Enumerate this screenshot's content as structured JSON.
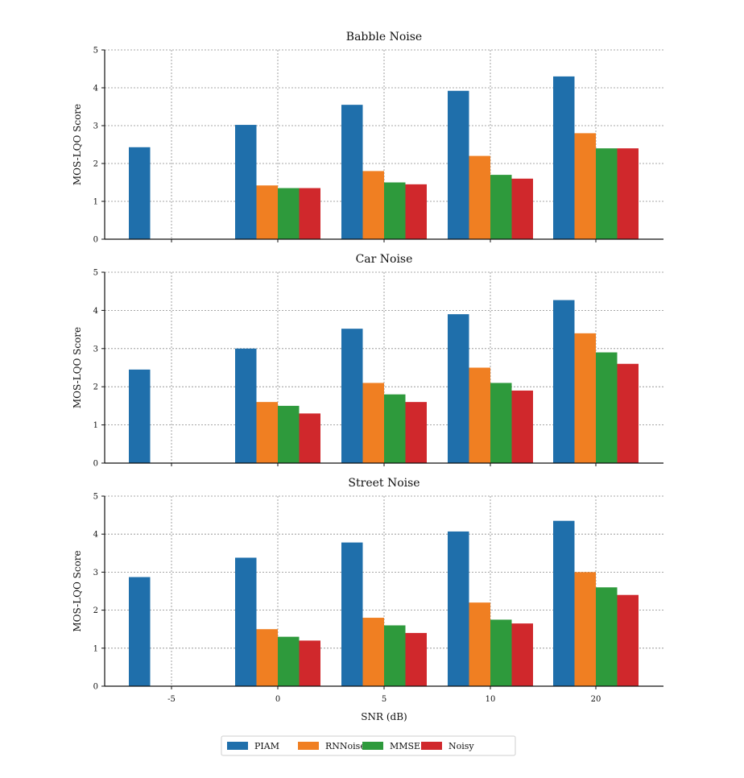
{
  "chart_data": [
    {
      "type": "bar",
      "title": "Babble Noise",
      "ylabel": "MOS-LQO Score",
      "xlabel": "",
      "ylim": [
        0,
        5
      ],
      "yticks": [
        0,
        1,
        2,
        3,
        4,
        5
      ],
      "categories": [
        "-5",
        "0",
        "5",
        "10",
        "20"
      ],
      "grid": true,
      "series": [
        {
          "name": "PIAM",
          "color": "#1f6fab",
          "values": [
            2.43,
            3.02,
            3.55,
            3.92,
            4.3
          ]
        },
        {
          "name": "RNNoise",
          "color": "#f07f22",
          "values": [
            null,
            1.42,
            1.8,
            2.2,
            2.8
          ]
        },
        {
          "name": "MMSE",
          "color": "#2e9a3c",
          "values": [
            null,
            1.35,
            1.5,
            1.7,
            2.4
          ]
        },
        {
          "name": "Noisy",
          "color": "#d0282c",
          "values": [
            null,
            1.35,
            1.45,
            1.6,
            2.4
          ]
        }
      ]
    },
    {
      "type": "bar",
      "title": "Car Noise",
      "ylabel": "MOS-LQO Score",
      "xlabel": "",
      "ylim": [
        0,
        5
      ],
      "yticks": [
        0,
        1,
        2,
        3,
        4,
        5
      ],
      "categories": [
        "-5",
        "0",
        "5",
        "10",
        "20"
      ],
      "grid": true,
      "series": [
        {
          "name": "PIAM",
          "color": "#1f6fab",
          "values": [
            2.45,
            3.0,
            3.52,
            3.9,
            4.27
          ]
        },
        {
          "name": "RNNoise",
          "color": "#f07f22",
          "values": [
            null,
            1.6,
            2.1,
            2.5,
            3.4
          ]
        },
        {
          "name": "MMSE",
          "color": "#2e9a3c",
          "values": [
            null,
            1.5,
            1.8,
            2.1,
            2.9
          ]
        },
        {
          "name": "Noisy",
          "color": "#d0282c",
          "values": [
            null,
            1.3,
            1.6,
            1.9,
            2.6
          ]
        }
      ]
    },
    {
      "type": "bar",
      "title": "Street Noise",
      "ylabel": "MOS-LQO Score",
      "xlabel": "SNR (dB)",
      "ylim": [
        0,
        5
      ],
      "yticks": [
        0,
        1,
        2,
        3,
        4,
        5
      ],
      "categories": [
        "-5",
        "0",
        "5",
        "10",
        "20"
      ],
      "grid": true,
      "series": [
        {
          "name": "PIAM",
          "color": "#1f6fab",
          "values": [
            2.87,
            3.38,
            3.78,
            4.07,
            4.35
          ]
        },
        {
          "name": "RNNoise",
          "color": "#f07f22",
          "values": [
            null,
            1.5,
            1.8,
            2.2,
            3.0
          ]
        },
        {
          "name": "MMSE",
          "color": "#2e9a3c",
          "values": [
            null,
            1.3,
            1.6,
            1.75,
            2.6
          ]
        },
        {
          "name": "Noisy",
          "color": "#d0282c",
          "values": [
            null,
            1.2,
            1.4,
            1.65,
            2.4
          ]
        }
      ]
    }
  ],
  "legend": {
    "placement": "bottom-center",
    "items": [
      {
        "label": "PIAM",
        "color": "#1f6fab"
      },
      {
        "label": "RNNoise",
        "color": "#f07f22"
      },
      {
        "label": "MMSE",
        "color": "#2e9a3c"
      },
      {
        "label": "Noisy",
        "color": "#d0282c"
      }
    ]
  }
}
